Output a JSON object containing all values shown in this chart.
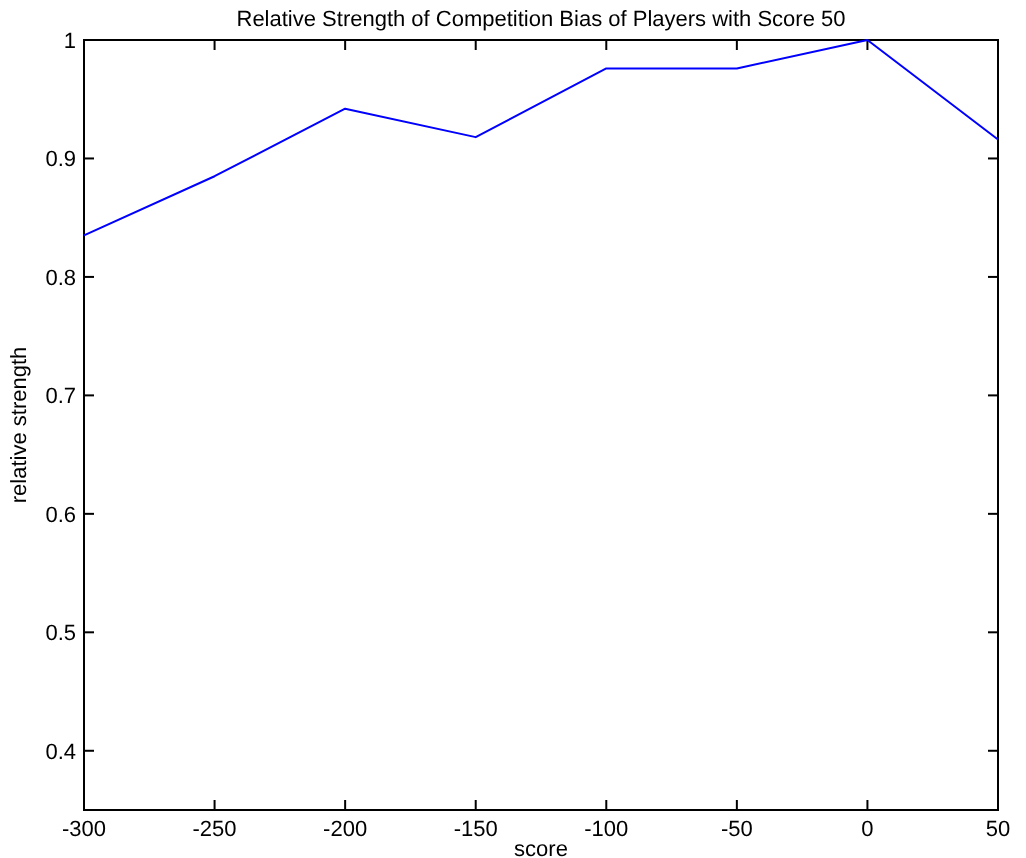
{
  "chart_data": {
    "type": "line",
    "title": "Relative Strength of Competition Bias of Players with Score 50",
    "xlabel": "score",
    "ylabel": "relative strength",
    "x": [
      -300,
      -250,
      -200,
      -150,
      -100,
      -50,
      0,
      50
    ],
    "series": [
      {
        "color": "#0000ff",
        "values": [
          0.835,
          0.885,
          0.942,
          0.918,
          0.976,
          0.976,
          1.0,
          0.916
        ]
      }
    ],
    "xlim": [
      -300,
      50
    ],
    "xticks": [
      -300,
      -250,
      -200,
      -150,
      -100,
      -50,
      0,
      50
    ],
    "ylim": [
      0.35,
      1
    ],
    "yticks": [
      0.4,
      0.5,
      0.6,
      0.7,
      0.8,
      0.9,
      1
    ],
    "marker": "none",
    "line_style": "solid"
  }
}
